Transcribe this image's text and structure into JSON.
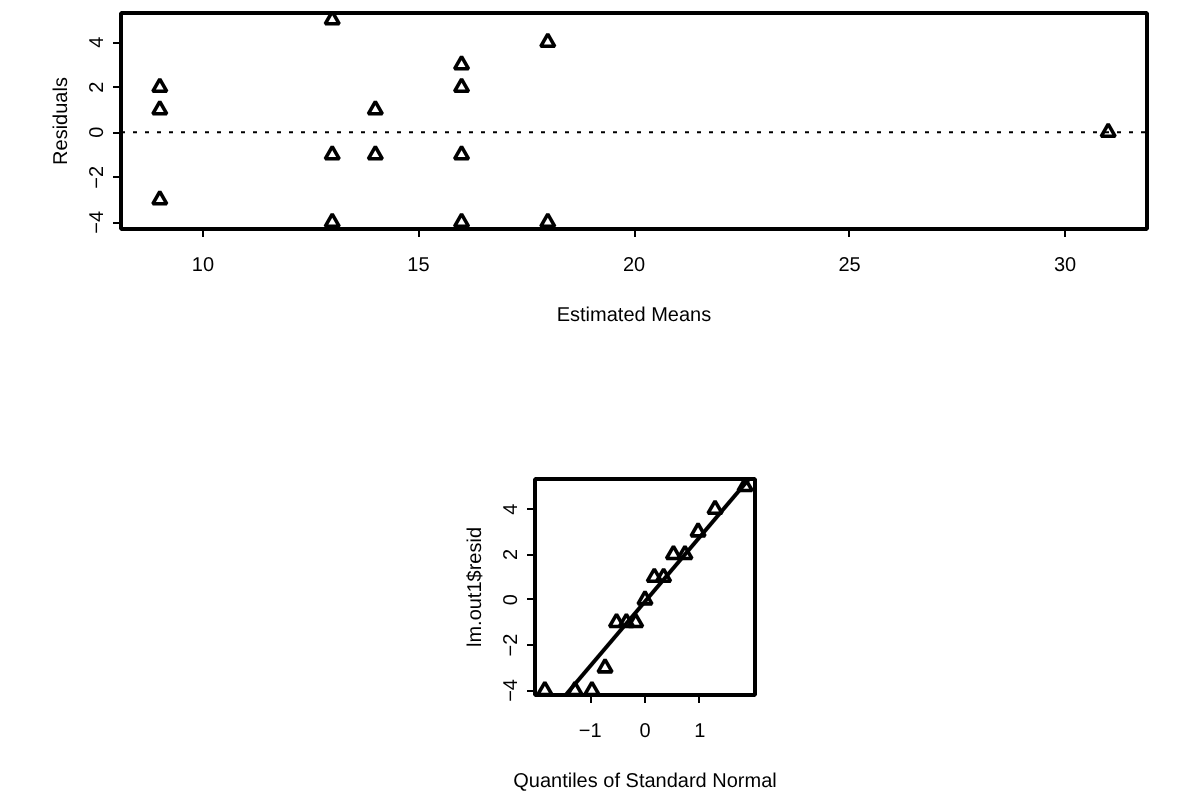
{
  "chart_data": [
    {
      "type": "scatter",
      "xlabel": "Estimated Means",
      "ylabel": "Residuals",
      "marker": "triangle",
      "grid": false,
      "x": [
        9,
        9,
        9,
        13,
        13,
        13,
        14,
        14,
        16,
        16,
        16,
        16,
        18,
        18,
        31
      ],
      "values": [
        2,
        1,
        -3,
        5,
        -1,
        -4,
        1,
        -1,
        3,
        2,
        -1,
        -4,
        4,
        -4,
        0
      ],
      "color": "#000000",
      "xlim": [
        8.1,
        31.9
      ],
      "ylim": [
        -4.3,
        5.3
      ],
      "xticks": [
        10,
        15,
        20,
        25,
        30
      ],
      "yticks": [
        -4,
        -2,
        0,
        2,
        4
      ],
      "ref_lines": [
        {
          "axis": "y",
          "value": 0,
          "line_style": "dotted",
          "color": "#000000"
        }
      ]
    },
    {
      "type": "scatter",
      "xlabel": "Quantiles of Standard Normal",
      "ylabel": "lm.out1$resid",
      "grid": false,
      "series": [
        {
          "type": "scatter",
          "marker": "triangle",
          "color": "#000000",
          "x": [
            -1.83,
            -1.28,
            -0.97,
            -0.73,
            -0.52,
            -0.34,
            -0.17,
            0,
            0.17,
            0.34,
            0.52,
            0.73,
            0.97,
            1.28,
            1.83
          ],
          "values": [
            -4,
            -4,
            -4,
            -3,
            -1,
            -1,
            -1,
            0,
            1,
            1,
            2,
            2,
            3,
            4,
            5
          ]
        },
        {
          "type": "line",
          "color": "#000000",
          "line_style": "solid",
          "x": [
            -1.45,
            1.89
          ],
          "values": [
            -4.2,
            5.3
          ]
        }
      ],
      "xlim": [
        -2.01,
        2.01
      ],
      "ylim": [
        -4.2,
        5.33
      ],
      "xticks": [
        -1,
        0,
        1
      ],
      "yticks": [
        -4,
        -2,
        0,
        2,
        4
      ]
    }
  ]
}
